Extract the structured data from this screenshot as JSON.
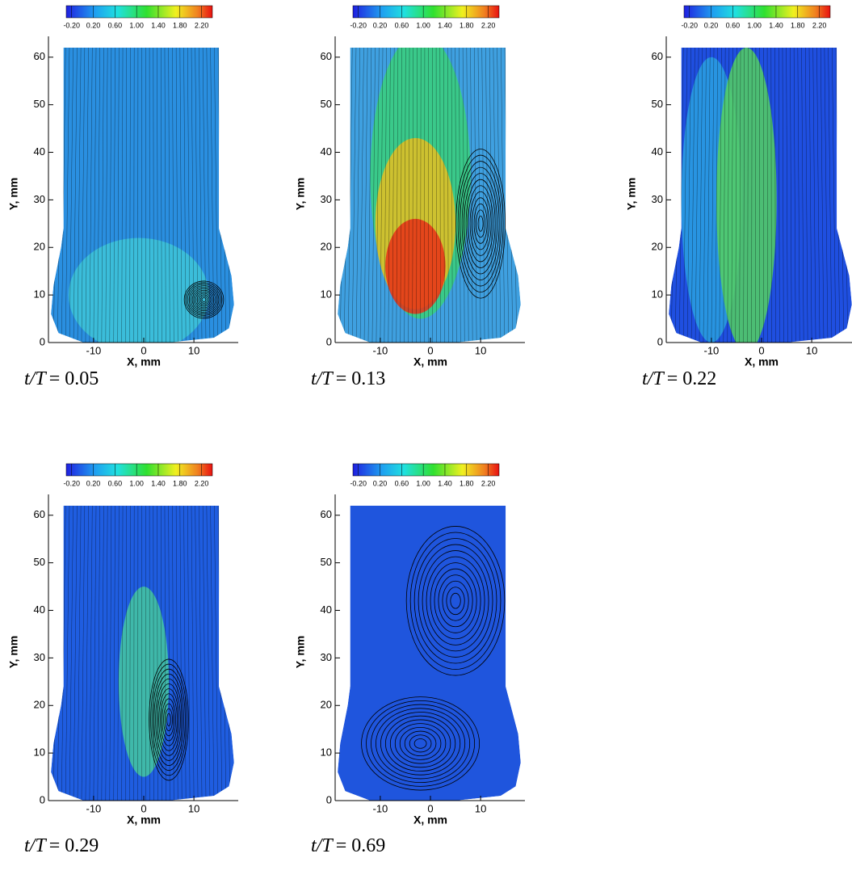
{
  "chart_data": [
    {
      "type": "contour",
      "xlabel": "X, mm",
      "ylabel": "Y, mm",
      "xlim": [
        -19,
        19
      ],
      "ylim": [
        0,
        62
      ],
      "xticks": [
        -10,
        0,
        10
      ],
      "yticks": [
        0,
        10,
        20,
        30,
        40,
        50,
        60
      ],
      "clim": [
        -0.3,
        2.4
      ],
      "cticks": [
        {
          "value": -0.2,
          "label": "-0.20"
        },
        {
          "value": 0.2,
          "label": "0.20"
        },
        {
          "value": 0.6,
          "label": "0.60"
        },
        {
          "value": 1.0,
          "label": "1.00"
        },
        {
          "value": 1.4,
          "label": "1.40"
        },
        {
          "value": 1.8,
          "label": "1.80"
        },
        {
          "value": 2.2,
          "label": "2.20"
        }
      ],
      "caption_var": "t/T",
      "caption_value": "= 0.05"
    },
    {
      "type": "contour",
      "xlabel": "X, mm",
      "ylabel": "Y, mm",
      "xlim": [
        -19,
        19
      ],
      "ylim": [
        0,
        62
      ],
      "xticks": [
        -10,
        0,
        10
      ],
      "yticks": [
        0,
        10,
        20,
        30,
        40,
        50,
        60
      ],
      "clim": [
        -0.3,
        2.4
      ],
      "cticks": [
        {
          "value": -0.2,
          "label": "-0.20"
        },
        {
          "value": 0.2,
          "label": "0.20"
        },
        {
          "value": 0.6,
          "label": "0.60"
        },
        {
          "value": 1.0,
          "label": "1.00"
        },
        {
          "value": 1.4,
          "label": "1.40"
        },
        {
          "value": 1.8,
          "label": "1.80"
        },
        {
          "value": 2.2,
          "label": "2.20"
        }
      ],
      "caption_var": "t/T",
      "caption_value": "= 0.13"
    },
    {
      "type": "contour",
      "xlabel": "X, mm",
      "ylabel": "Y, mm",
      "xlim": [
        -19,
        19
      ],
      "ylim": [
        0,
        62
      ],
      "xticks": [
        -10,
        0,
        10
      ],
      "yticks": [
        0,
        10,
        20,
        30,
        40,
        50,
        60
      ],
      "clim": [
        -0.3,
        2.4
      ],
      "cticks": [
        {
          "value": -0.2,
          "label": "-0.20"
        },
        {
          "value": 0.2,
          "label": "0.20"
        },
        {
          "value": 0.6,
          "label": "0.60"
        },
        {
          "value": 1.0,
          "label": "1.00"
        },
        {
          "value": 1.4,
          "label": "1.40"
        },
        {
          "value": 1.8,
          "label": "1.80"
        },
        {
          "value": 2.2,
          "label": "2.20"
        }
      ],
      "caption_var": "t/T",
      "caption_value": "= 0.22"
    },
    {
      "type": "contour",
      "xlabel": "X, mm",
      "ylabel": "Y, mm",
      "xlim": [
        -19,
        19
      ],
      "ylim": [
        0,
        62
      ],
      "xticks": [
        -10,
        0,
        10
      ],
      "yticks": [
        0,
        10,
        20,
        30,
        40,
        50,
        60
      ],
      "clim": [
        -0.3,
        2.4
      ],
      "cticks": [
        {
          "value": -0.2,
          "label": "-0.20"
        },
        {
          "value": 0.2,
          "label": "0.20"
        },
        {
          "value": 0.6,
          "label": "0.60"
        },
        {
          "value": 1.0,
          "label": "1.00"
        },
        {
          "value": 1.4,
          "label": "1.40"
        },
        {
          "value": 1.8,
          "label": "1.80"
        },
        {
          "value": 2.2,
          "label": "2.20"
        }
      ],
      "caption_var": "t/T",
      "caption_value": "= 0.29"
    },
    {
      "type": "contour",
      "xlabel": "X, mm",
      "ylabel": "Y, mm",
      "xlim": [
        -19,
        19
      ],
      "ylim": [
        0,
        62
      ],
      "xticks": [
        -10,
        0,
        10
      ],
      "yticks": [
        0,
        10,
        20,
        30,
        40,
        50,
        60
      ],
      "clim": [
        -0.3,
        2.4
      ],
      "cticks": [
        {
          "value": -0.2,
          "label": "-0.20"
        },
        {
          "value": 0.2,
          "label": "0.20"
        },
        {
          "value": 0.6,
          "label": "0.60"
        },
        {
          "value": 1.0,
          "label": "1.00"
        },
        {
          "value": 1.4,
          "label": "1.40"
        },
        {
          "value": 1.8,
          "label": "1.80"
        },
        {
          "value": 2.2,
          "label": "2.20"
        }
      ],
      "caption_var": "t/T",
      "caption_value": "= 0.69"
    }
  ]
}
